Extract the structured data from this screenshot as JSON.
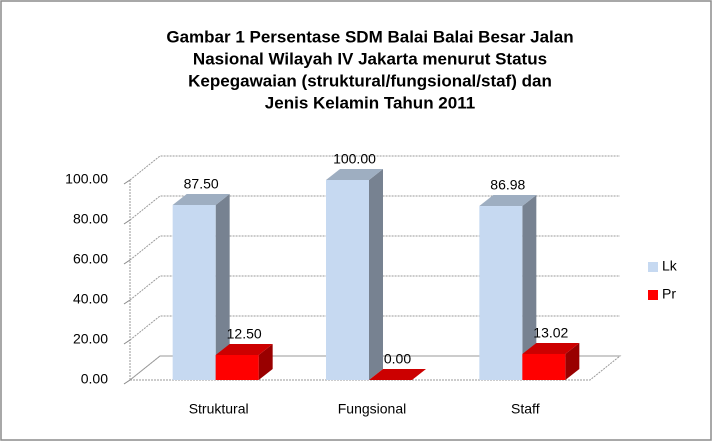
{
  "chart_data": {
    "type": "bar3d",
    "title": [
      "Gambar 1 Persentase SDM Balai Balai Besar Jalan",
      "Nasional Wilayah IV Jakarta menurut Status",
      "Kepegawaian (struktural/fungsional/staf) dan",
      "Jenis Kelamin Tahun 2011"
    ],
    "categories": [
      "Struktural",
      "Fungsional",
      "Staff"
    ],
    "series": [
      {
        "name": "Lk",
        "color": "#c6d9f1",
        "values": [
          87.5,
          100,
          86.98
        ],
        "value_labels": [
          "87.50",
          "100.00",
          "86.98"
        ]
      },
      {
        "name": "Pr",
        "color": "#ff0000",
        "values": [
          12.5,
          0,
          13.02
        ],
        "value_labels": [
          "12.50",
          "0.00",
          "13.02"
        ]
      }
    ],
    "ylim": [
      0,
      100
    ],
    "yticks": [
      {
        "value": 0,
        "label": "0.00"
      },
      {
        "value": 20,
        "label": "20.00"
      },
      {
        "value": 40,
        "label": "40.00"
      },
      {
        "value": 60,
        "label": "60.00"
      },
      {
        "value": 80,
        "label": "80.00"
      },
      {
        "value": 100,
        "label": "100.00"
      }
    ],
    "grid": true,
    "legend": "right"
  }
}
